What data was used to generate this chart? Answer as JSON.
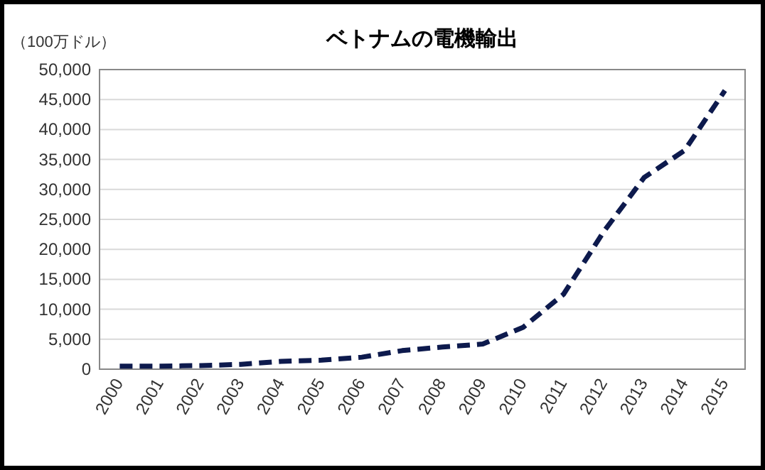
{
  "chart_data": {
    "type": "line",
    "title": "ベトナムの電機輸出",
    "ylabel": "（100万ドル）",
    "categories": [
      "2000",
      "2001",
      "2002",
      "2003",
      "2004",
      "2005",
      "2006",
      "2007",
      "2008",
      "2009",
      "2010",
      "2011",
      "2012",
      "2013",
      "2014",
      "2015"
    ],
    "series": [
      {
        "color": "#0d1a4d",
        "values": [
          500,
          500,
          600,
          800,
          1300,
          1500,
          2000,
          3100,
          3700,
          4200,
          7000,
          12500,
          23000,
          32000,
          36500,
          46500
        ]
      }
    ],
    "ylim": [
      0,
      50000
    ],
    "yticks": [
      {
        "value": 0,
        "label": "0"
      },
      {
        "value": 5000,
        "label": "5,000"
      },
      {
        "value": 10000,
        "label": "10,000"
      },
      {
        "value": 15000,
        "label": "15,000"
      },
      {
        "value": 20000,
        "label": "20,000"
      },
      {
        "value": 25000,
        "label": "25,000"
      },
      {
        "value": 30000,
        "label": "30,000"
      },
      {
        "value": 35000,
        "label": "35,000"
      },
      {
        "value": 40000,
        "label": "40,000"
      },
      {
        "value": 45000,
        "label": "45,000"
      },
      {
        "value": 50000,
        "label": "50,000"
      }
    ],
    "grid": "y",
    "line_style": "dashed",
    "marker": "none"
  }
}
